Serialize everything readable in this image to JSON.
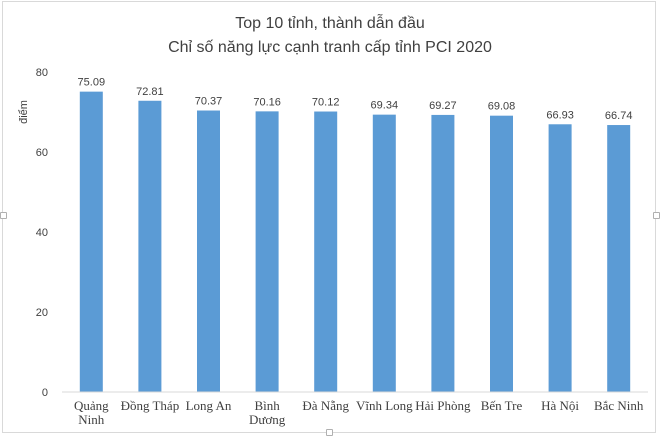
{
  "chart_data": {
    "type": "bar",
    "title_lines": [
      "Top 10 tỉnh, thành dẫn đầu",
      "Chỉ số năng lực cạnh tranh cấp tỉnh PCI 2020"
    ],
    "ylabel": "điểm",
    "xlabel": "",
    "ylim": [
      0,
      80
    ],
    "yticks": [
      0,
      20,
      40,
      60,
      80
    ],
    "grid": false,
    "bar_color": "#5b9bd5",
    "categories": [
      [
        "Quảng",
        "Ninh"
      ],
      [
        "Đồng Tháp"
      ],
      [
        "Long An"
      ],
      [
        "Bình",
        "Dương"
      ],
      [
        "Đà Nẵng"
      ],
      [
        "Vĩnh Long"
      ],
      [
        "Hải Phòng"
      ],
      [
        "Bến Tre"
      ],
      [
        "Hà Nội"
      ],
      [
        "Bắc Ninh"
      ]
    ],
    "values": [
      75.09,
      72.81,
      70.37,
      70.16,
      70.12,
      69.34,
      69.27,
      69.08,
      66.93,
      66.74
    ],
    "data_labels": [
      "75.09",
      "72.81",
      "70.37",
      "70.16",
      "70.12",
      "69.34",
      "69.27",
      "69.08",
      "66.93",
      "66.74"
    ]
  }
}
